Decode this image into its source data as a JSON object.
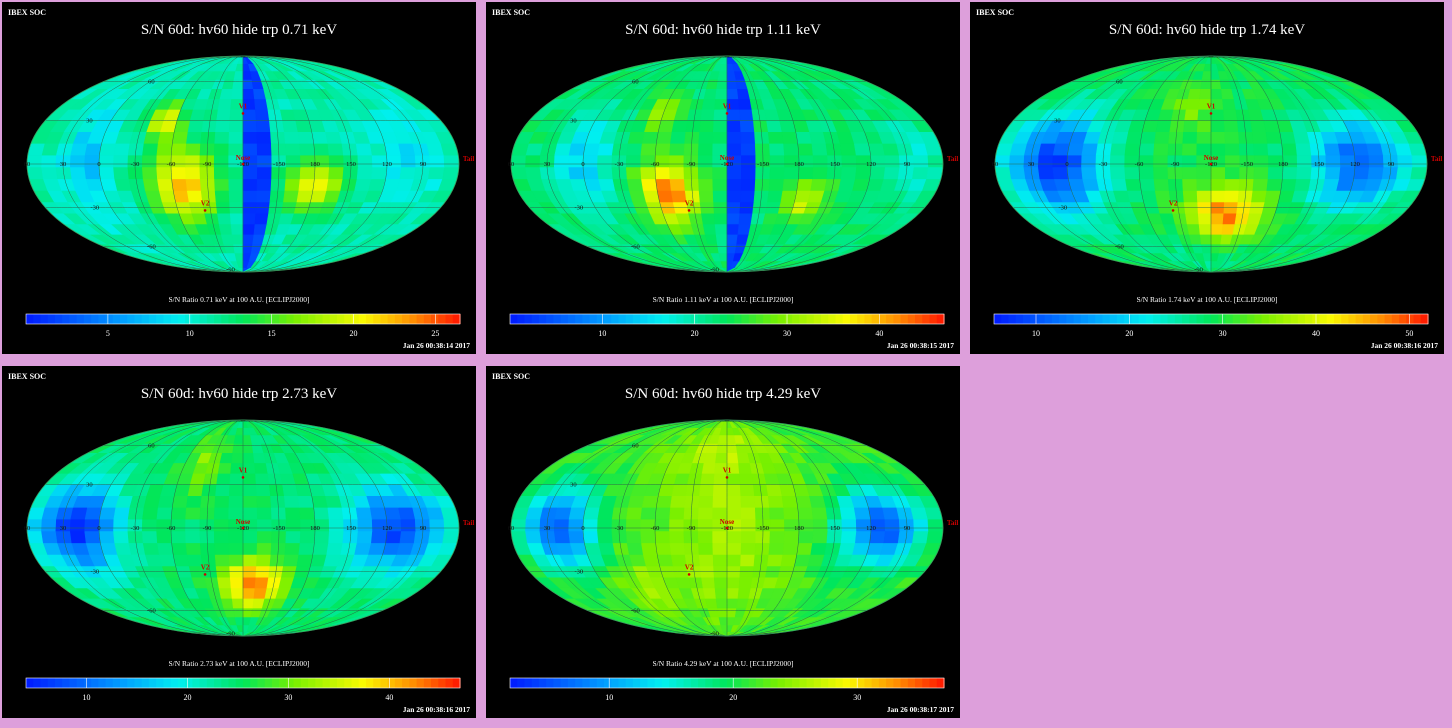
{
  "common": {
    "soc_label": "IBEX SOC",
    "meridian_labels": [
      "60",
      "30",
      "0",
      "-30",
      "-60",
      "-90",
      "-120",
      "-150",
      "180",
      "150",
      "120",
      "90"
    ],
    "lat_labels": [
      "60",
      "30",
      "-30",
      "-60",
      "-90"
    ],
    "markers": {
      "v1": "V1",
      "v2": "V2",
      "nose": "Nose",
      "tail": "Tail"
    }
  },
  "panels": [
    {
      "title": "S/N  60d: hv60 hide trp 0.71 keV",
      "colorbar_label": "S/N Ratio 0.71 keV at 100 A.U. [ECLIPJ2000]",
      "timestamp": "Jan 26 00:38:14 2017",
      "ticks": [
        "5",
        "10",
        "15",
        "20",
        "25"
      ],
      "vmin": 0,
      "vmax": 26.5
    },
    {
      "title": "S/N  60d: hv60 hide trp 1.11 keV",
      "colorbar_label": "S/N Ratio 1.11 keV at 100 A.U. [ECLIPJ2000]",
      "timestamp": "Jan 26 00:38:15 2017",
      "ticks": [
        "10",
        "20",
        "30",
        "40"
      ],
      "vmin": 0,
      "vmax": 47
    },
    {
      "title": "S/N  60d: hv60 hide trp 1.74 keV",
      "colorbar_label": "S/N Ratio 1.74 keV at 100 A.U. [ECLIPJ2000]",
      "timestamp": "Jan 26 00:38:16 2017",
      "ticks": [
        "10",
        "20",
        "30",
        "40",
        "50"
      ],
      "vmin": 5.5,
      "vmax": 52
    },
    {
      "title": "S/N  60d: hv60 hide trp 2.73 keV",
      "colorbar_label": "S/N Ratio 2.73 keV at 100 A.U. [ECLIPJ2000]",
      "timestamp": "Jan 26 00:38:16 2017",
      "ticks": [
        "10",
        "20",
        "30",
        "40"
      ],
      "vmin": 4,
      "vmax": 47
    },
    {
      "title": "S/N  60d: hv60 hide trp 4.29 keV",
      "colorbar_label": "S/N Ratio 4.29 keV at 100 A.U. [ECLIPJ2000]",
      "timestamp": "Jan 26 00:38:17 2017",
      "ticks": [
        "10",
        "20",
        "30"
      ],
      "vmin": 2,
      "vmax": 37
    }
  ],
  "chart_data": [
    {
      "type": "heatmap",
      "title": "S/N  60d: hv60 hide trp 0.71 keV",
      "projection": "Mollweide (ecliptic)",
      "colorbar": {
        "label": "S/N Ratio 0.71 keV at 100 A.U. [ECLIPJ2000]",
        "range": [
          0,
          26.5
        ],
        "ticks": [
          5,
          10,
          15,
          20,
          25
        ]
      },
      "notable": "high S/N (~20-25) patches around lon -60 to -90, lat +30 and -30; blue gap strip around lon 180"
    },
    {
      "type": "heatmap",
      "title": "S/N  60d: hv60 hide trp 1.11 keV",
      "projection": "Mollweide (ecliptic)",
      "colorbar": {
        "label": "S/N Ratio 1.11 keV at 100 A.U. [ECLIPJ2000]",
        "range": [
          0,
          47
        ],
        "ticks": [
          10,
          20,
          30,
          40
        ]
      },
      "notable": "peak (~40) near lon -90 lat -30; blue gap strip"
    },
    {
      "type": "heatmap",
      "title": "S/N  60d: hv60 hide trp 1.74 keV",
      "projection": "Mollweide (ecliptic)",
      "colorbar": {
        "label": "S/N Ratio 1.74 keV at 100 A.U. [ECLIPJ2000]",
        "range": [
          5.5,
          52
        ],
        "ticks": [
          10,
          20,
          30,
          40,
          50
        ]
      },
      "notable": "peak (~45) near V2 direction; low (~10) toward lon 60 and 120"
    },
    {
      "type": "heatmap",
      "title": "S/N  60d: hv60 hide trp 2.73 keV",
      "projection": "Mollweide (ecliptic)",
      "colorbar": {
        "label": "S/N Ratio 2.73 keV at 100 A.U. [ECLIPJ2000]",
        "range": [
          4,
          47
        ],
        "ticks": [
          10,
          20,
          30,
          40
        ]
      },
      "notable": "peak (~40) south of nose; blue lobes along ecliptic at lon ~60 and ~120"
    },
    {
      "type": "heatmap",
      "title": "S/N  60d: hv60 hide trp 4.29 keV",
      "projection": "Mollweide (ecliptic)",
      "colorbar": {
        "label": "S/N Ratio 4.29 keV at 100 A.U. [ECLIPJ2000]",
        "range": [
          2,
          37
        ],
        "ticks": [
          10,
          20,
          30
        ]
      },
      "notable": "broad green/yellow (~20-28); blue lobes along ecliptic"
    }
  ]
}
